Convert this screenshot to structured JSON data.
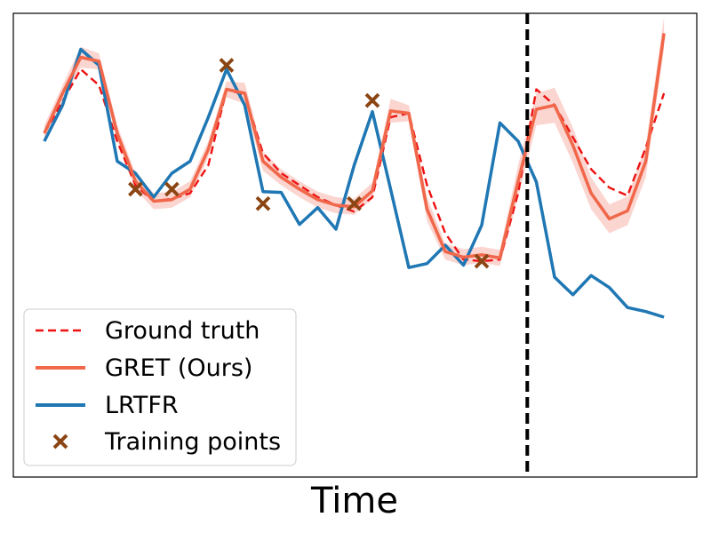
{
  "chart_data": {
    "type": "line",
    "title": "",
    "xlabel": "Time",
    "ylabel": "",
    "xlim": [
      -1.7,
      35.8
    ],
    "ylim": [
      -0.6,
      5.2
    ],
    "ticks_visible": false,
    "grid": false,
    "legend_position": "lower-left",
    "cutoff_x": 26.5,
    "series": [
      {
        "name": "Ground truth",
        "style": "dashed",
        "color": "#ee1111",
        "x": [
          0,
          1,
          2,
          3,
          4,
          5,
          6,
          7,
          8,
          9,
          10,
          11,
          12,
          13,
          14,
          15,
          16,
          17,
          18,
          19,
          20,
          21,
          22,
          23,
          24,
          25,
          26,
          27,
          28,
          29,
          30,
          31,
          32,
          33,
          34
        ],
        "values": [
          3.7,
          4.1,
          4.5,
          4.3,
          3.6,
          3.05,
          2.85,
          2.88,
          2.95,
          3.3,
          4.25,
          4.18,
          3.45,
          3.2,
          3.05,
          2.9,
          2.8,
          2.72,
          2.9,
          3.9,
          3.95,
          3.05,
          2.45,
          2.12,
          2.1,
          2.12,
          2.95,
          4.25,
          4.05,
          3.65,
          3.25,
          3.02,
          2.92,
          3.52,
          4.2
        ]
      },
      {
        "name": "GRET (Ours)",
        "style": "solid",
        "color": "#f0674a",
        "band_color": "#f8b3aa",
        "x": [
          0,
          1,
          2,
          3,
          4,
          5,
          6,
          7,
          8,
          9,
          10,
          11,
          12,
          13,
          14,
          15,
          16,
          17,
          18,
          19,
          20,
          21,
          22,
          23,
          24,
          25,
          26,
          27,
          28,
          29,
          30,
          31,
          32,
          33,
          34
        ],
        "values": [
          3.7,
          4.2,
          4.65,
          4.6,
          3.7,
          3.1,
          2.85,
          2.87,
          3.0,
          3.5,
          4.25,
          4.2,
          3.35,
          3.15,
          3.0,
          2.87,
          2.8,
          2.78,
          2.98,
          3.98,
          3.95,
          2.75,
          2.22,
          2.15,
          2.18,
          2.14,
          3.1,
          4.0,
          4.05,
          3.55,
          2.95,
          2.63,
          2.73,
          3.35,
          4.95
        ],
        "band": [
          0.1,
          0.1,
          0.13,
          0.1,
          0.1,
          0.1,
          0.1,
          0.1,
          0.1,
          0.1,
          0.1,
          0.13,
          0.12,
          0.1,
          0.1,
          0.1,
          0.1,
          0.1,
          0.1,
          0.15,
          0.1,
          0.15,
          0.1,
          0.1,
          0.1,
          0.1,
          0.2,
          0.2,
          0.22,
          0.22,
          0.2,
          0.18,
          0.18,
          0.2,
          0.2
        ]
      },
      {
        "name": "LRTFR",
        "style": "solid",
        "color": "#1f77b4",
        "x": [
          0,
          1,
          2,
          3,
          4,
          5,
          6,
          7,
          8,
          9,
          10,
          11,
          12,
          13,
          14,
          15,
          16,
          17,
          18,
          19,
          20,
          21,
          22,
          23,
          24,
          25,
          26,
          27,
          28,
          29,
          30,
          31,
          32,
          33,
          34
        ],
        "values": [
          3.6,
          4.05,
          4.75,
          4.55,
          3.35,
          3.2,
          2.9,
          3.2,
          3.35,
          3.9,
          4.5,
          4.05,
          2.97,
          2.96,
          2.56,
          2.77,
          2.5,
          3.3,
          3.97,
          3.0,
          2.02,
          2.07,
          2.3,
          2.05,
          2.55,
          3.83,
          3.6,
          3.09,
          1.9,
          1.68,
          1.92,
          1.77,
          1.52,
          1.47,
          1.4
        ]
      },
      {
        "name": "Training points",
        "style": "marker",
        "color": "#8b4513",
        "x": [
          5,
          7,
          10,
          12,
          17,
          18,
          24
        ],
        "values": [
          3.0,
          3.0,
          4.55,
          2.82,
          2.82,
          4.11,
          2.1
        ]
      }
    ]
  },
  "colors": {
    "ground_truth": "#ee1111",
    "gret": "#f0674a",
    "gret_band": "#f8b3aa",
    "lrtfr": "#1f77b4",
    "training": "#8b4513"
  }
}
